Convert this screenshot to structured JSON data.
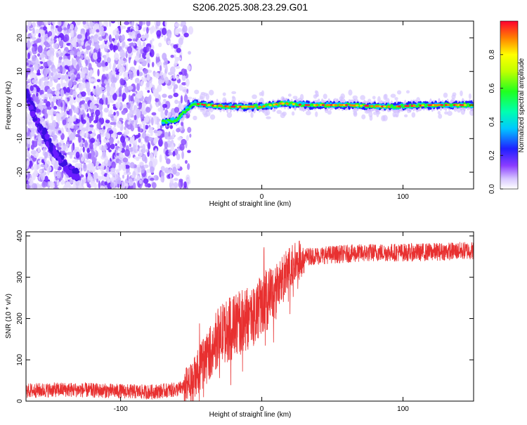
{
  "title": "S206.2025.308.23.29.G01",
  "chart_data": [
    {
      "type": "heatmap",
      "xlabel": "Height of straight line (km)",
      "ylabel": "Frequency (Hz)",
      "xlim": [
        -167,
        150
      ],
      "ylim": [
        -25,
        25
      ],
      "xticks": [
        -100,
        0,
        100
      ],
      "yticks": [
        -20,
        -10,
        0,
        10,
        20
      ],
      "colorbar": {
        "label": "Normalized spectral amplitude",
        "range": [
          0,
          1
        ],
        "ticks": [
          0.0,
          0.2,
          0.4,
          0.6,
          0.8
        ]
      },
      "ridge": [
        [
          -70,
          -5
        ],
        [
          -60,
          -4.5
        ],
        [
          -55,
          -2
        ],
        [
          -48,
          0.5
        ],
        [
          -40,
          0
        ],
        [
          -20,
          -0.5
        ],
        [
          0,
          -0.5
        ],
        [
          15,
          0.5
        ],
        [
          30,
          0
        ],
        [
          60,
          0
        ],
        [
          90,
          -0.5
        ],
        [
          120,
          0
        ],
        [
          150,
          0
        ]
      ],
      "low_freq_streak": [
        [
          -167,
          4
        ],
        [
          -160,
          -4
        ],
        [
          -150,
          -12
        ],
        [
          -140,
          -18
        ],
        [
          -130,
          -21
        ]
      ]
    },
    {
      "type": "line",
      "xlabel": "Height of straight line (km)",
      "ylabel": "SNR (10 * v/v)",
      "xlim": [
        -167,
        150
      ],
      "ylim": [
        0,
        410
      ],
      "xticks": [
        -100,
        0,
        100
      ],
      "yticks": [
        0,
        100,
        200,
        300,
        400
      ],
      "color": "#e83030",
      "series": [
        {
          "x": [
            -167,
            -140,
            -110,
            -80,
            -60,
            -50,
            -40,
            -30,
            -20,
            -10,
            0,
            10,
            20,
            30,
            50,
            80,
            110,
            150
          ],
          "y": [
            25,
            28,
            25,
            22,
            28,
            40,
            100,
            160,
            180,
            200,
            230,
            270,
            320,
            350,
            355,
            360,
            360,
            365
          ]
        }
      ]
    }
  ]
}
